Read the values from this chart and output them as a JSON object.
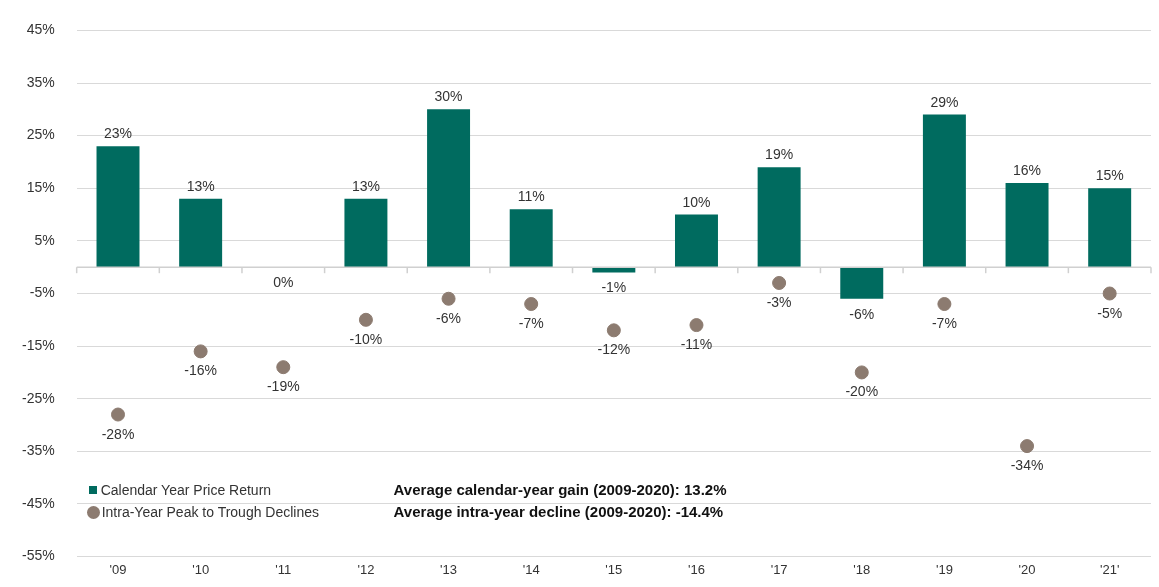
{
  "chart_data": {
    "type": "bar",
    "categories": [
      "'09",
      "'10",
      "'11",
      "'12",
      "'13",
      "'14",
      "'15",
      "'16",
      "'17",
      "'18",
      "'19",
      "'20",
      "'21'"
    ],
    "series": [
      {
        "name": "Calendar Year Price Return",
        "color": "#006b5f",
        "values": [
          23,
          13,
          0,
          13,
          30,
          11,
          -1,
          10,
          19,
          -6,
          29,
          16,
          15
        ],
        "value_labels": [
          "23%",
          "13%",
          "0%",
          "13%",
          "30%",
          "11%",
          "-1%",
          "10%",
          "19%",
          "-6%",
          "29%",
          "16%",
          "15%"
        ]
      },
      {
        "name": "Intra-Year Peak to Trough Declines",
        "type": "scatter",
        "color": "#8c7b70",
        "values": [
          -28,
          -16,
          -19,
          -10,
          -6,
          -7,
          -12,
          -11,
          -3,
          -20,
          -7,
          -34,
          -5
        ],
        "value_labels": [
          "-28%",
          "-16%",
          "-19%",
          "-10%",
          "-6%",
          "-7%",
          "-12%",
          "-11%",
          "-3%",
          "-20%",
          "-7%",
          "-34%",
          "-5%"
        ]
      }
    ],
    "ylim": [
      -55,
      45
    ],
    "yticks": [
      {
        "value": -55,
        "label": "-55%"
      },
      {
        "value": -45,
        "label": "-45%"
      },
      {
        "value": -35,
        "label": "-35%"
      },
      {
        "value": -25,
        "label": "-25%"
      },
      {
        "value": -15,
        "label": "-15%"
      },
      {
        "value": -5,
        "label": "-5%"
      },
      {
        "value": 5,
        "label": "5%"
      },
      {
        "value": 15,
        "label": "15%"
      },
      {
        "value": 25,
        "label": "25%"
      },
      {
        "value": 35,
        "label": "35%"
      },
      {
        "value": 45,
        "label": "45%"
      }
    ],
    "grid": "y",
    "legend": "bottom left",
    "marker": "circle",
    "annotations": [
      "Average calendar-year gain (2009-2020): 13.2%",
      "Average intra-year decline (2009-2020): -14.4%"
    ]
  }
}
